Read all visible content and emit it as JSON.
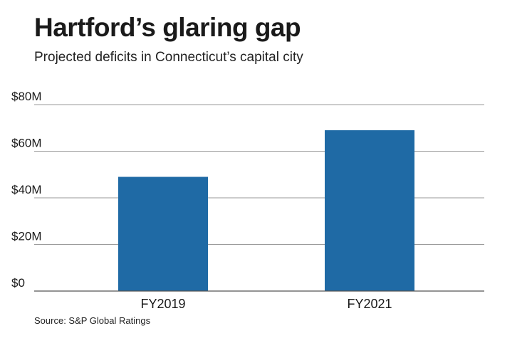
{
  "title": "Hartford’s glaring gap",
  "subtitle": "Projected deficits in Connecticut’s capital city",
  "source": "Source: S&P Global Ratings",
  "colors": {
    "bar": "#1f6aa5",
    "grid": "#9a9a9a",
    "text": "#1a1a1a"
  },
  "chart_data": {
    "type": "bar",
    "title": "Hartford’s glaring gap",
    "subtitle": "Projected deficits in Connecticut’s capital city",
    "categories": [
      "FY2019",
      "FY2021"
    ],
    "values": [
      49,
      69
    ],
    "unit": "$M",
    "ylim": [
      0,
      80
    ],
    "yticks": [
      {
        "value": 0,
        "label": "$0"
      },
      {
        "value": 20,
        "label": "$20M"
      },
      {
        "value": 40,
        "label": "$40M"
      },
      {
        "value": 60,
        "label": "$60M"
      },
      {
        "value": 80,
        "label": "$80M"
      }
    ],
    "xlabel": "",
    "ylabel": "",
    "grid": true,
    "legend": false
  }
}
